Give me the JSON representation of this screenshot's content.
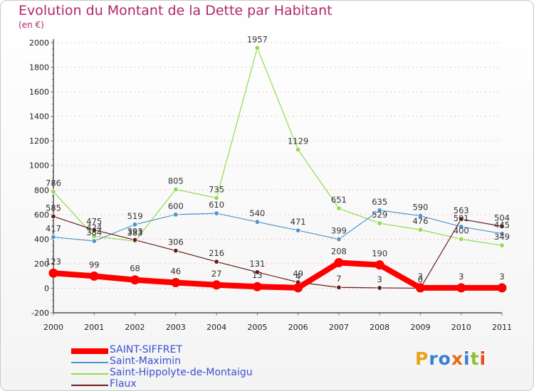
{
  "title": "Evolution du Montant de la Dette par Habitant",
  "subtitle": "(en €)",
  "logo_text": "Proxiti",
  "colors": {
    "title": "#b0276d",
    "grid": "#ff8888",
    "axis": "#000000",
    "legend_text": "#3a4fd0"
  },
  "chart_data": {
    "type": "line",
    "x": [
      "2000",
      "2001",
      "2002",
      "2003",
      "2004",
      "2005",
      "2006",
      "2007",
      "2008",
      "2009",
      "2010",
      "2011"
    ],
    "ylim": [
      -200,
      2000
    ],
    "yticks": [
      -200,
      0,
      200,
      400,
      600,
      800,
      1000,
      1200,
      1400,
      1600,
      1800,
      2000
    ],
    "grid": true,
    "legend_position": "bottom-left",
    "series": [
      {
        "name": "SAINT-SIFFRET",
        "color": "#ff0000",
        "values": [
          123,
          99,
          68,
          46,
          27,
          13,
          4,
          208,
          190,
          3,
          3,
          3
        ]
      },
      {
        "name": "Saint-Maximin",
        "color": "#4f94cd",
        "values": [
          417,
          384,
          519,
          600,
          610,
          540,
          471,
          399,
          635,
          590,
          501,
          445
        ]
      },
      {
        "name": "Saint-Hippolyte-de-Montaigu",
        "color": "#8fdc4f",
        "values": [
          786,
          424,
          383,
          805,
          735,
          1957,
          1129,
          651,
          529,
          476,
          400,
          349
        ]
      },
      {
        "name": "Flaux",
        "color": "#6b1a1a",
        "values": [
          585,
          475,
          393,
          306,
          216,
          131,
          49,
          7,
          3,
          0,
          563,
          504
        ]
      }
    ]
  }
}
